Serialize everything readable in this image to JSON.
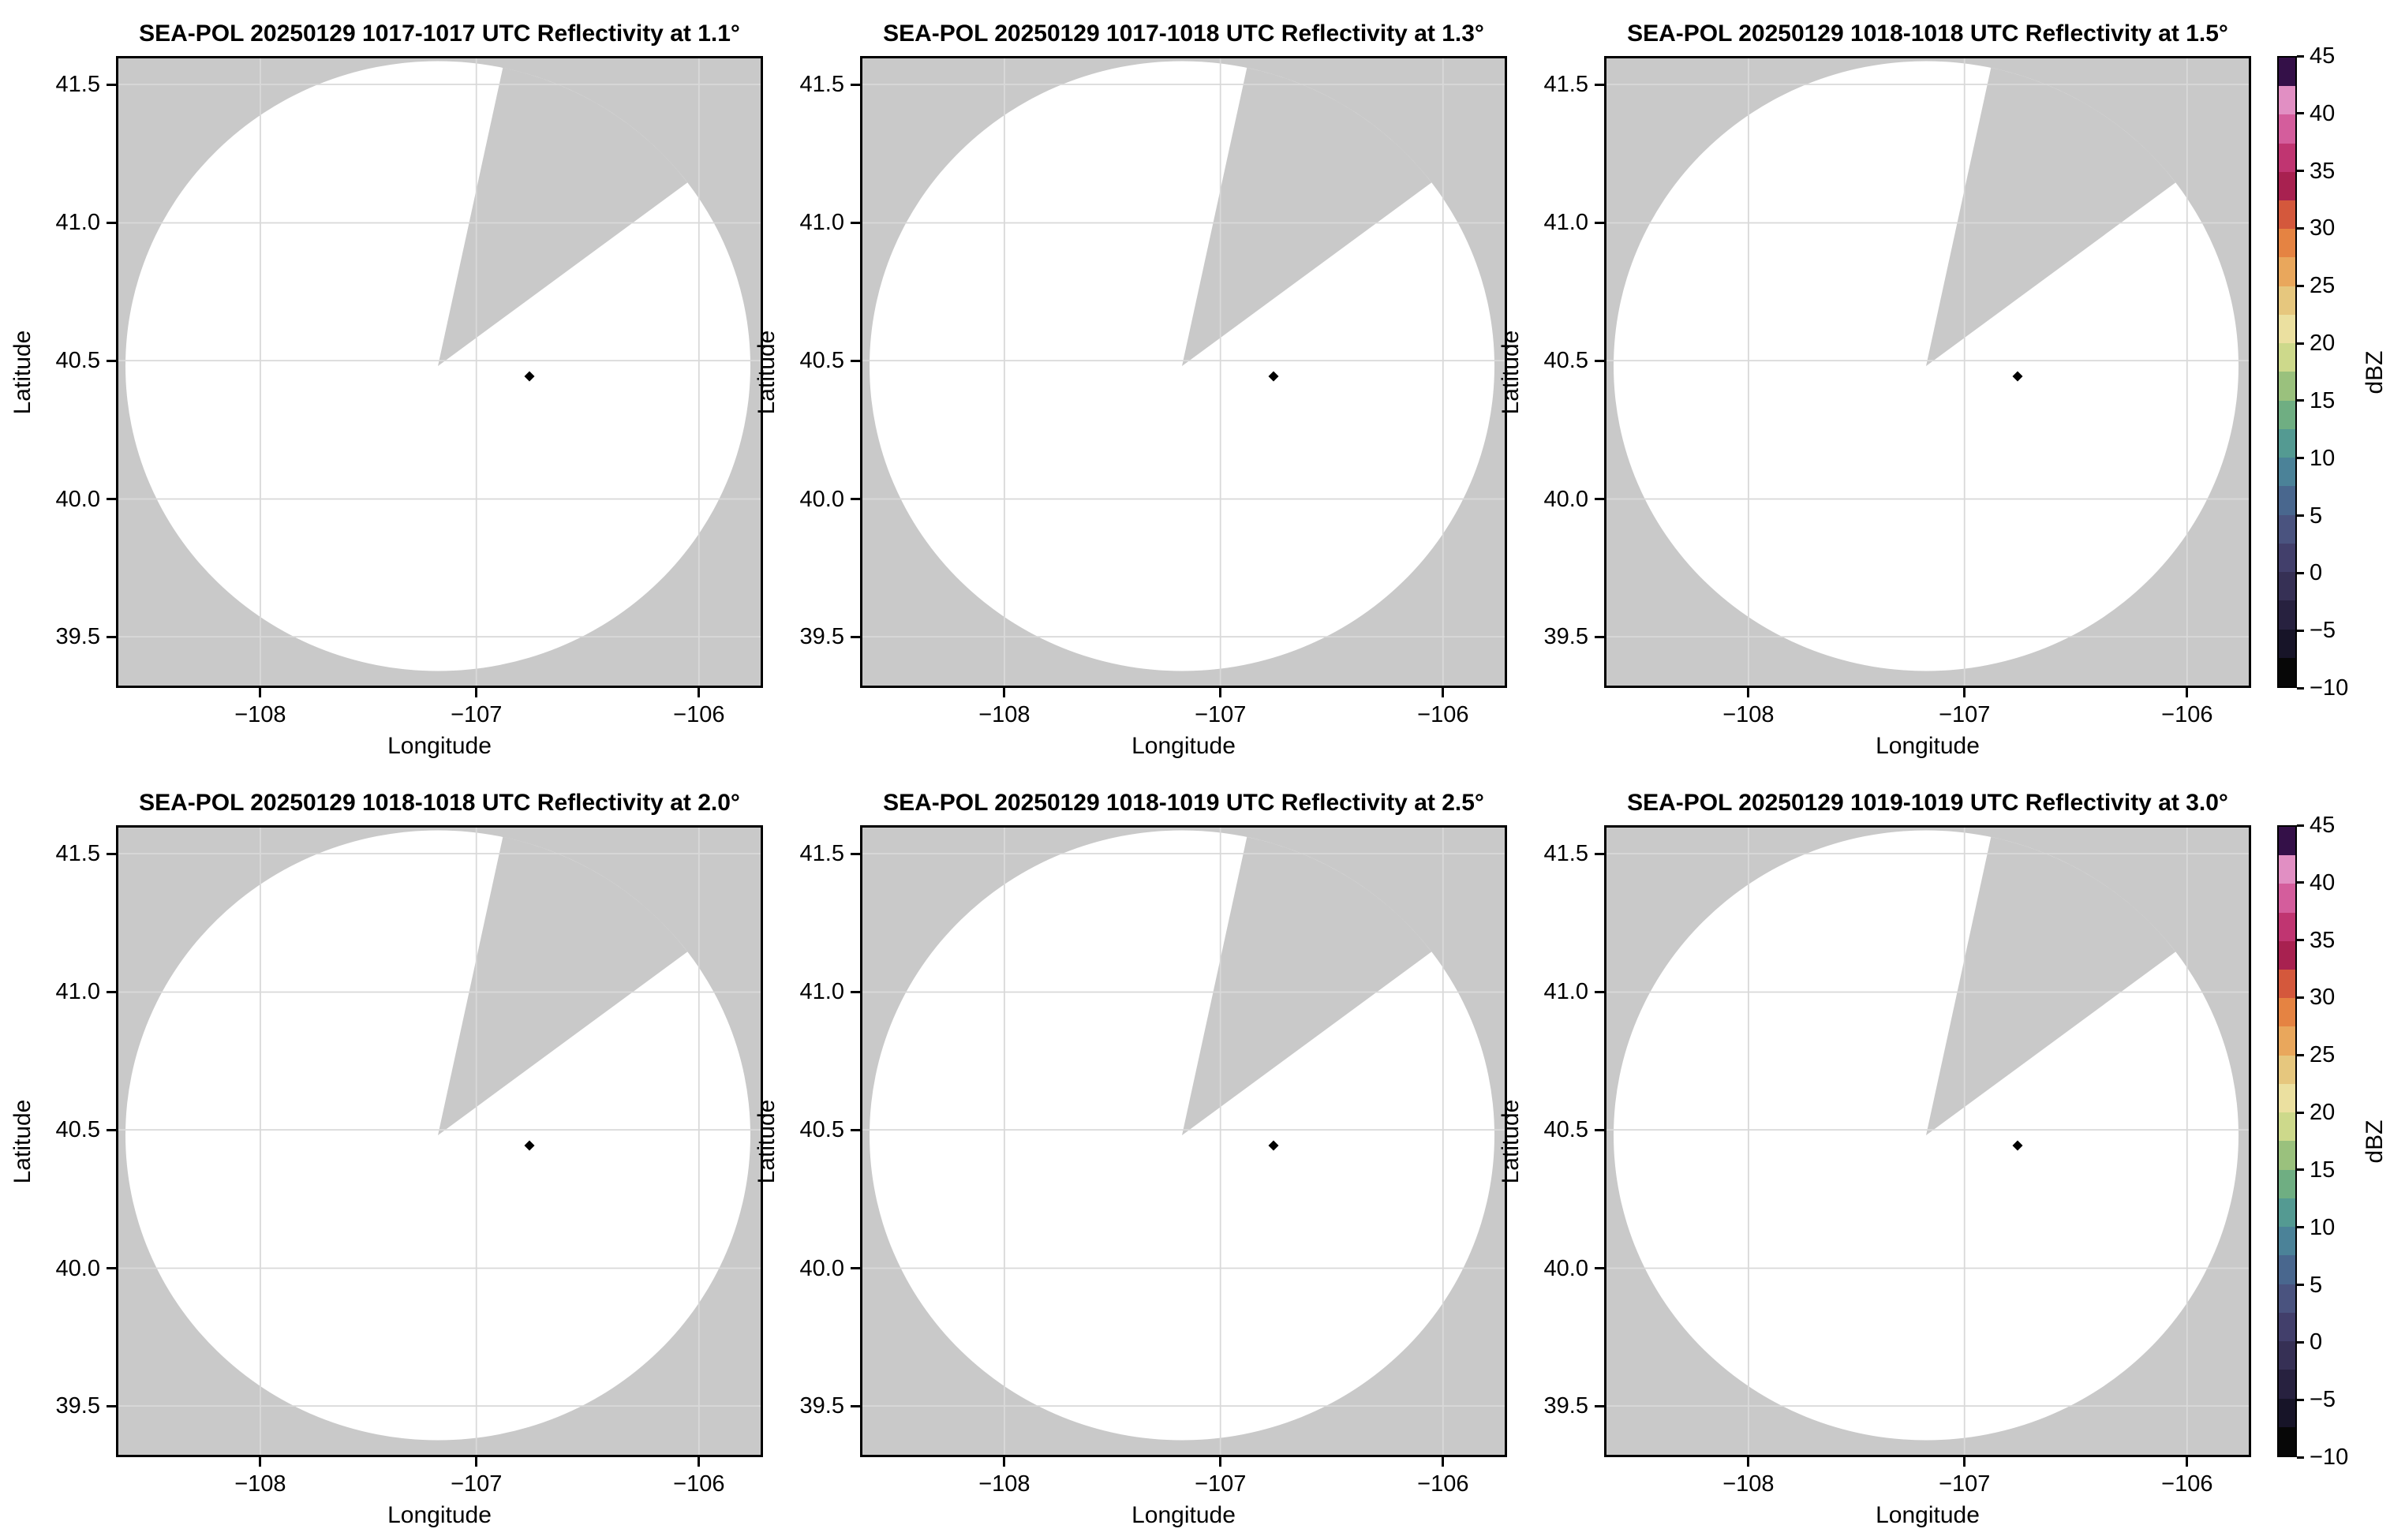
{
  "figure": {
    "xlabel": "Longitude",
    "ylabel": "Latitude",
    "colorbar_label": "dBZ",
    "x_ticks": [
      "−108",
      "−107",
      "−106"
    ],
    "y_ticks": [
      "41.5",
      "41.0",
      "40.5",
      "40.0",
      "39.5"
    ],
    "colorbar_ticks": [
      "45",
      "40",
      "35",
      "30",
      "25",
      "20",
      "15",
      "10",
      "5",
      "0",
      "−5",
      "−10"
    ],
    "subplots": [
      {
        "title": "SEA-POL 20250129 1017-1017 UTC Reflectivity at 1.1°"
      },
      {
        "title": "SEA-POL 20250129 1017-1018 UTC Reflectivity at 1.3°"
      },
      {
        "title": "SEA-POL 20250129 1018-1018 UTC Reflectivity at 1.5°"
      },
      {
        "title": "SEA-POL 20250129 1018-1018 UTC Reflectivity at 2.0°"
      },
      {
        "title": "SEA-POL 20250129 1018-1019 UTC Reflectivity at 2.5°"
      },
      {
        "title": "SEA-POL 20250129 1019-1019 UTC Reflectivity at 3.0°"
      }
    ]
  },
  "chart_data": {
    "type": "heatmap",
    "description": "2x3 grid of SEA-POL radar PPI reflectivity maps on lat/lon axes. Scan circle contains no echoes above colormap minimum (blank white scan); gray = no data, including a missing azimuth sector wedge.",
    "panels": [
      {
        "title": "SEA-POL 20250129 1017-1017 UTC Reflectivity at 1.1°",
        "time_utc": "1017-1017",
        "elevation_deg": 1.1
      },
      {
        "title": "SEA-POL 20250129 1017-1018 UTC Reflectivity at 1.3°",
        "time_utc": "1017-1018",
        "elevation_deg": 1.3
      },
      {
        "title": "SEA-POL 20250129 1018-1018 UTC Reflectivity at 1.5°",
        "time_utc": "1018-1018",
        "elevation_deg": 1.5
      },
      {
        "title": "SEA-POL 20250129 1018-1018 UTC Reflectivity at 2.0°",
        "time_utc": "1018-1018",
        "elevation_deg": 2.0
      },
      {
        "title": "SEA-POL 20250129 1018-1019 UTC Reflectivity at 2.5°",
        "time_utc": "1018-1019",
        "elevation_deg": 2.5
      },
      {
        "title": "SEA-POL 20250129 1019-1019 UTC Reflectivity at 3.0°",
        "time_utc": "1019-1019",
        "elevation_deg": 3.0
      }
    ],
    "xlabel": "Longitude",
    "ylabel": "Latitude",
    "x_ticks": [
      -108,
      -107,
      -106
    ],
    "y_ticks": [
      41.5,
      41.0,
      40.5,
      40.0,
      39.5
    ],
    "xlim": [
      -108.63,
      -105.72
    ],
    "ylim": [
      39.35,
      41.57
    ],
    "grid": true,
    "radar_marker": {
      "lon": -106.76,
      "lat": 40.46,
      "shape": "diamond",
      "color": "#000000"
    },
    "scan_circle": {
      "center_lon": -107.17,
      "center_lat": 40.47,
      "radius_deg_lon": 1.41,
      "radius_deg_lat": 1.1,
      "fill": "#ffffff",
      "no_data_color": "#c9c9c9",
      "missing_sector_azimuth_deg": [
        12,
        53
      ]
    },
    "colorbar": {
      "label": "dBZ",
      "min": -10,
      "max": 45,
      "tick_step": 5,
      "level_step": 2.5,
      "segment_colors_bottom_to_top": [
        "#070707",
        "#171428",
        "#27213f",
        "#363055",
        "#423f6b",
        "#4a537f",
        "#49678e",
        "#4b8298",
        "#549a92",
        "#6fae82",
        "#9ac17d",
        "#cdd98b",
        "#ebe0a0",
        "#e6c77e",
        "#e9a75c",
        "#e58342",
        "#d4583c",
        "#a82150",
        "#c03571",
        "#d45d9c",
        "#e18fc3",
        "#b494cb"
      ],
      "top_segment_color": "#341048"
    }
  }
}
